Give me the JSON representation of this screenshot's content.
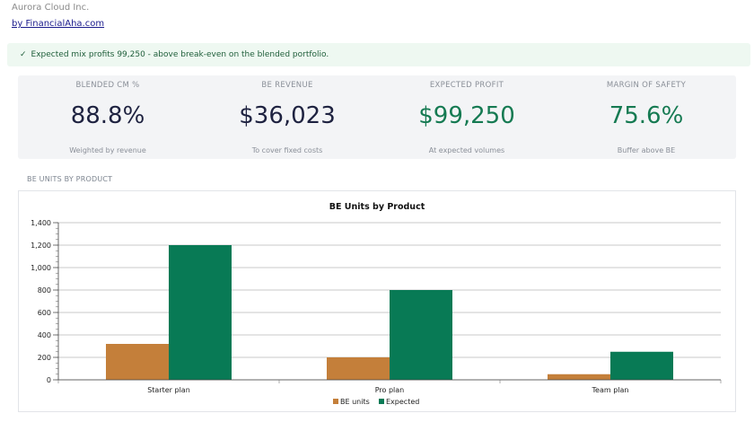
{
  "header": {
    "company": "Aurora Cloud Inc.",
    "byline": "by FinancialAha.com"
  },
  "banner": {
    "icon": "check-icon",
    "text": "Expected mix profits 99,250 - above break-even on the blended portfolio."
  },
  "kpis": [
    {
      "title": "BLENDED CM %",
      "value": "88.8%",
      "sub": "Weighted by revenue"
    },
    {
      "title": "BE REVENUE",
      "value": "$36,023",
      "sub": "To cover fixed costs"
    },
    {
      "title": "EXPECTED PROFIT",
      "value": "$99,250",
      "sub": "At expected volumes"
    },
    {
      "title": "MARGIN OF SAFETY",
      "value": "75.6%",
      "sub": "Buffer above BE"
    }
  ],
  "colors": {
    "dark_value": "#1e2240",
    "green_value": "#157a52",
    "be_units": "#c47f3a",
    "expected": "#087a55"
  },
  "section_label": "BE UNITS BY PRODUCT",
  "chart_data": {
    "type": "bar",
    "title": "BE Units by Product",
    "categories": [
      "Starter plan",
      "Pro plan",
      "Team plan"
    ],
    "series": [
      {
        "name": "BE units",
        "values": [
          320,
          200,
          50
        ]
      },
      {
        "name": "Expected",
        "values": [
          1200,
          800,
          250
        ]
      }
    ],
    "ylim": [
      0,
      1400
    ],
    "yticks": [
      0,
      200,
      400,
      600,
      800,
      1000,
      1200,
      1400
    ],
    "ytick_labels": [
      "0",
      "200",
      "400",
      "600",
      "800",
      "1,000",
      "1,200",
      "1,400"
    ],
    "grid": true,
    "legend": "bottom-center"
  }
}
